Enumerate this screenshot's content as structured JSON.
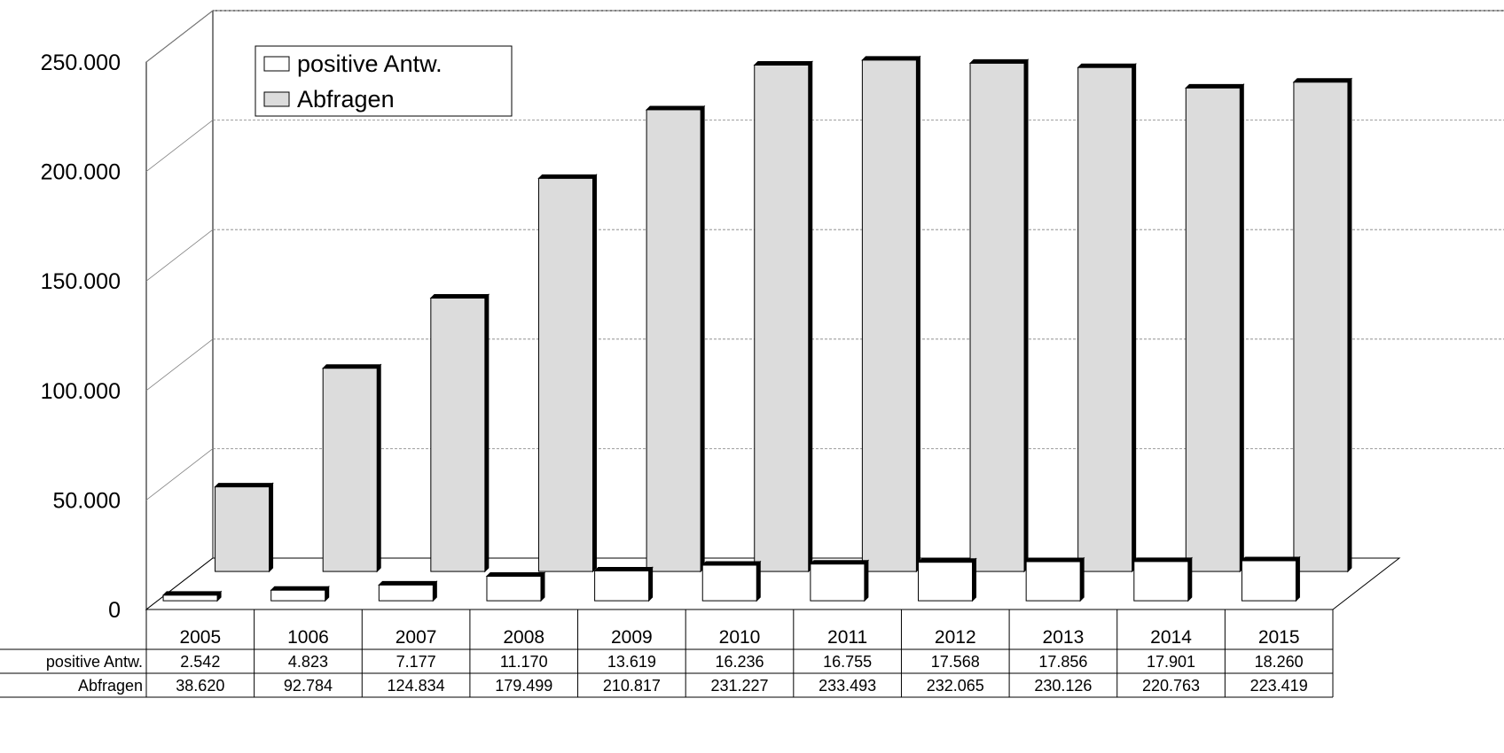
{
  "chart_data": {
    "type": "bar",
    "title": "",
    "xlabel": "",
    "ylabel": "",
    "categories": [
      "2005",
      "1006",
      "2007",
      "2008",
      "2009",
      "2010",
      "2011",
      "2012",
      "2013",
      "2014",
      "2015"
    ],
    "series": [
      {
        "name": "positive Antw.",
        "values": [
          2542,
          4823,
          7177,
          11170,
          13619,
          16236,
          16755,
          17568,
          17856,
          17901,
          18260
        ],
        "labels": [
          "2.542",
          "4.823",
          "7.177",
          "11.170",
          "13.619",
          "16.236",
          "16.755",
          "17.568",
          "17.856",
          "17.901",
          "18.260"
        ],
        "color": "#ffffff"
      },
      {
        "name": "Abfragen",
        "values": [
          38620,
          92784,
          124834,
          179499,
          210817,
          231227,
          233493,
          232065,
          230126,
          220763,
          223419
        ],
        "labels": [
          "38.620",
          "92.784",
          "124.834",
          "179.499",
          "210.817",
          "231.227",
          "233.493",
          "232.065",
          "230.126",
          "220.763",
          "223.419"
        ],
        "color": "#dcdcdc"
      }
    ],
    "ylim": [
      0,
      250000
    ],
    "yticks": [
      "0",
      "50.000",
      "100.000",
      "150.000",
      "200.000",
      "250.000"
    ],
    "legend": {
      "position": "top-left",
      "entries": [
        "positive Antw.",
        "Abfragen"
      ]
    },
    "grid": true,
    "data_table": true
  }
}
